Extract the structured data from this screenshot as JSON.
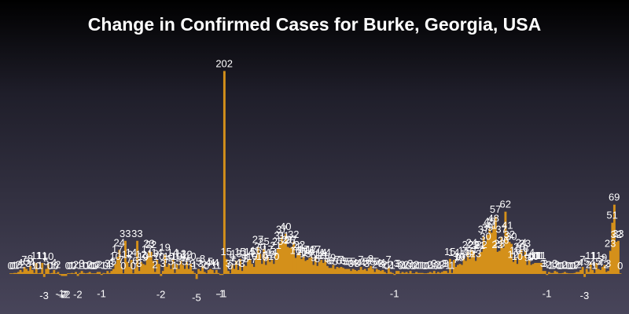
{
  "chart_data": {
    "type": "bar",
    "title": "Change in Confirmed Cases for Burke, Georgia, USA",
    "xlabel": "",
    "ylabel": "",
    "grid": false,
    "legend": "none",
    "bar_color": "#d4901a",
    "values": [
      0,
      0,
      1,
      1,
      2,
      4,
      2,
      7,
      5,
      3,
      8,
      4,
      1,
      11,
      0,
      1,
      11,
      -3,
      5,
      10,
      0,
      1,
      4,
      0,
      2,
      -1,
      -2,
      -2,
      -2,
      0,
      0,
      1,
      0,
      2,
      -2,
      1,
      3,
      1,
      0,
      1,
      2,
      0,
      0,
      0,
      2,
      2,
      -1,
      1,
      0,
      3,
      1,
      3,
      5,
      10,
      17,
      24,
      7,
      0,
      33,
      12,
      7,
      14,
      0,
      6,
      33,
      3,
      12,
      10,
      9,
      17,
      23,
      22,
      13,
      2,
      14,
      10,
      -2,
      3,
      19,
      7,
      10,
      5,
      14,
      1,
      10,
      5,
      13,
      9,
      5,
      12,
      5,
      10,
      3,
      1,
      -5,
      5,
      3,
      8,
      2,
      0,
      4,
      5,
      4,
      1,
      4,
      1,
      -1,
      -1,
      202,
      15,
      3,
      0,
      9,
      5,
      13,
      4,
      15,
      3,
      9,
      8,
      14,
      15,
      10,
      7,
      16,
      27,
      20,
      10,
      25,
      9,
      17,
      12,
      14,
      10,
      21,
      25,
      31,
      37,
      31,
      40,
      27,
      26,
      27,
      32,
      16,
      20,
      22,
      15,
      17,
      13,
      14,
      16,
      17,
      9,
      17,
      8,
      12,
      14,
      11,
      14,
      8,
      6,
      6,
      9,
      5,
      7,
      6,
      7,
      6,
      5,
      5,
      5,
      3,
      5,
      4,
      3,
      4,
      7,
      4,
      5,
      3,
      6,
      8,
      5,
      2,
      5,
      4,
      3,
      4,
      2,
      0,
      7,
      2,
      1,
      -1,
      3,
      3,
      0,
      2,
      1,
      2,
      0,
      3,
      0,
      0,
      2,
      1,
      1,
      1,
      0,
      0,
      1,
      2,
      1,
      3,
      0,
      2,
      1,
      2,
      3,
      3,
      1,
      15,
      1,
      14,
      7,
      9,
      10,
      9,
      16,
      13,
      22,
      15,
      24,
      22,
      13,
      17,
      21,
      22,
      37,
      30,
      39,
      45,
      41,
      48,
      57,
      22,
      23,
      37,
      26,
      62,
      41,
      32,
      30,
      12,
      16,
      10,
      20,
      24,
      18,
      23,
      9,
      14,
      9,
      10,
      11,
      11,
      11,
      11,
      3,
      3,
      -1,
      2,
      1,
      1,
      3,
      2,
      0,
      0,
      1,
      2,
      1,
      0,
      0,
      0,
      1,
      2,
      2,
      4,
      7,
      -3,
      5,
      2,
      11,
      4,
      1,
      11,
      5,
      4,
      7,
      9,
      2,
      3,
      23,
      51,
      69,
      32,
      33,
      0
    ]
  }
}
